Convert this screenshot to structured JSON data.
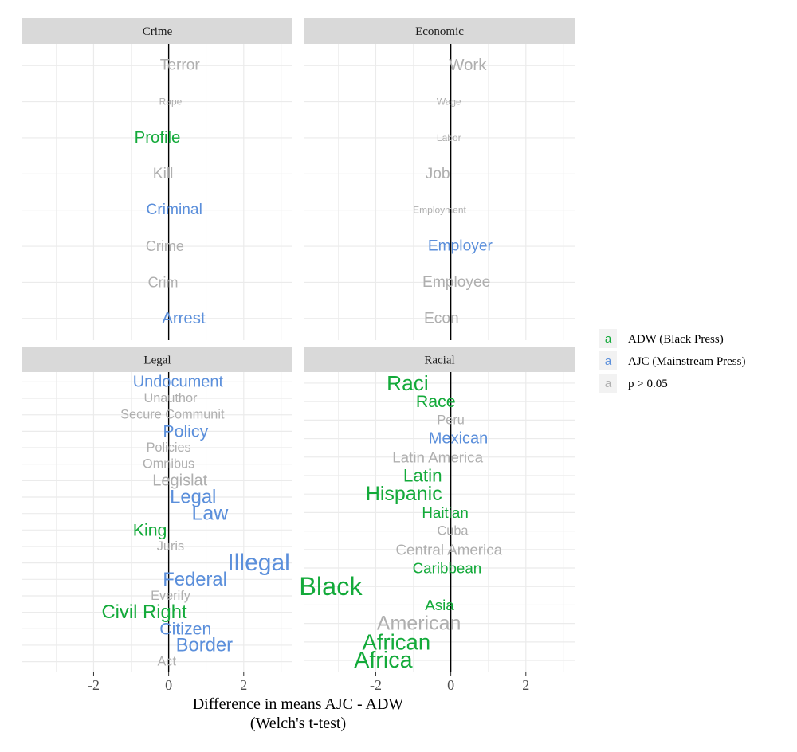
{
  "colors": {
    "adw": "#13AA3A",
    "ajc": "#5B8FDB",
    "ns": "#AFAFAF"
  },
  "chart_data": {
    "type": "scatter",
    "xlabel": "Difference in means AJC - ADW",
    "xlabel2": "(Welch's t-test)",
    "xlim": [
      -3.9,
      3.3
    ],
    "xticks": [
      -2,
      0,
      2
    ],
    "xtick_labels": [
      "-2",
      "0",
      "2"
    ],
    "grid": true,
    "legend": {
      "position": "right",
      "key_glyph": "a",
      "entries": [
        {
          "key": "adw",
          "label": "ADW (Black Press)"
        },
        {
          "key": "ajc",
          "label": "AJC (Mainstream Press)"
        },
        {
          "key": "ns",
          "label": "p > 0.05"
        }
      ]
    },
    "panels": [
      {
        "title": "Crime",
        "words": [
          {
            "label": "Terror",
            "x": 0.3,
            "group": "ns",
            "size": 1.6
          },
          {
            "label": "Rape",
            "x": 0.05,
            "group": "ns",
            "size": 1.0
          },
          {
            "label": "Profile",
            "x": -0.3,
            "group": "adw",
            "size": 1.7
          },
          {
            "label": "Kill",
            "x": -0.15,
            "group": "ns",
            "size": 1.6
          },
          {
            "label": "Criminal",
            "x": 0.15,
            "group": "ajc",
            "size": 1.6
          },
          {
            "label": "Crime",
            "x": -0.1,
            "group": "ns",
            "size": 1.5
          },
          {
            "label": "Crim",
            "x": -0.15,
            "group": "ns",
            "size": 1.5
          },
          {
            "label": "Arrest",
            "x": 0.4,
            "group": "ajc",
            "size": 1.7
          }
        ]
      },
      {
        "title": "Economic",
        "words": [
          {
            "label": "Work",
            "x": 0.45,
            "group": "ns",
            "size": 1.7
          },
          {
            "label": "Wage",
            "x": -0.05,
            "group": "ns",
            "size": 1.0
          },
          {
            "label": "Labor",
            "x": -0.05,
            "group": "ns",
            "size": 1.0
          },
          {
            "label": "Job",
            "x": -0.35,
            "group": "ns",
            "size": 1.6
          },
          {
            "label": "Employment",
            "x": -0.3,
            "group": "ns",
            "size": 1.0
          },
          {
            "label": "Employer",
            "x": 0.25,
            "group": "ajc",
            "size": 1.6
          },
          {
            "label": "Employee",
            "x": 0.15,
            "group": "ns",
            "size": 1.6
          },
          {
            "label": "Econ",
            "x": -0.25,
            "group": "ns",
            "size": 1.6
          }
        ]
      },
      {
        "title": "Legal",
        "words": [
          {
            "label": "Undocument",
            "x": 0.25,
            "group": "ajc",
            "size": 1.6
          },
          {
            "label": "Unauthor",
            "x": 0.05,
            "group": "ns",
            "size": 1.3
          },
          {
            "label": "Secure Communit",
            "x": 0.1,
            "group": "ns",
            "size": 1.3
          },
          {
            "label": "Policy",
            "x": 0.45,
            "group": "ajc",
            "size": 1.7
          },
          {
            "label": "Policies",
            "x": 0.0,
            "group": "ns",
            "size": 1.3
          },
          {
            "label": "Omnibus",
            "x": 0.0,
            "group": "ns",
            "size": 1.3
          },
          {
            "label": "Legislat",
            "x": 0.3,
            "group": "ns",
            "size": 1.6
          },
          {
            "label": "Legal",
            "x": 0.65,
            "group": "ajc",
            "size": 1.9
          },
          {
            "label": "Law",
            "x": 1.1,
            "group": "ajc",
            "size": 2.0
          },
          {
            "label": "King",
            "x": -0.5,
            "group": "adw",
            "size": 1.7
          },
          {
            "label": "Juris",
            "x": 0.05,
            "group": "ns",
            "size": 1.3
          },
          {
            "label": "Illegal",
            "x": 2.4,
            "group": "ajc",
            "size": 2.4
          },
          {
            "label": "Federal",
            "x": 0.7,
            "group": "ajc",
            "size": 1.9
          },
          {
            "label": "Everify",
            "x": 0.05,
            "group": "ns",
            "size": 1.3
          },
          {
            "label": "Civil Right",
            "x": -0.65,
            "group": "adw",
            "size": 1.9
          },
          {
            "label": "Citizen",
            "x": 0.45,
            "group": "ajc",
            "size": 1.7
          },
          {
            "label": "Border",
            "x": 0.95,
            "group": "ajc",
            "size": 1.9
          },
          {
            "label": "Act",
            "x": -0.05,
            "group": "ns",
            "size": 1.3
          }
        ]
      },
      {
        "title": "Racial",
        "words": [
          {
            "label": "Raci",
            "x": -1.15,
            "group": "adw",
            "size": 2.1
          },
          {
            "label": "Race",
            "x": -0.4,
            "group": "adw",
            "size": 1.7
          },
          {
            "label": "Peru",
            "x": 0.0,
            "group": "ns",
            "size": 1.3
          },
          {
            "label": "Mexican",
            "x": 0.2,
            "group": "ajc",
            "size": 1.6
          },
          {
            "label": "Latin America",
            "x": -0.35,
            "group": "ns",
            "size": 1.5
          },
          {
            "label": "Latin",
            "x": -0.75,
            "group": "adw",
            "size": 1.8
          },
          {
            "label": "Hispanic",
            "x": -1.25,
            "group": "adw",
            "size": 2.0
          },
          {
            "label": "Haitian",
            "x": -0.15,
            "group": "adw",
            "size": 1.5
          },
          {
            "label": "Cuba",
            "x": 0.05,
            "group": "ns",
            "size": 1.3
          },
          {
            "label": "Central America",
            "x": -0.05,
            "group": "ns",
            "size": 1.5
          },
          {
            "label": "Caribbean",
            "x": -0.1,
            "group": "adw",
            "size": 1.5
          },
          {
            "label": "Black",
            "x": -3.2,
            "group": "adw",
            "size": 2.6
          },
          {
            "label": "Asia",
            "x": -0.3,
            "group": "adw",
            "size": 1.5
          },
          {
            "label": "American",
            "x": -0.85,
            "group": "ns",
            "size": 2.0
          },
          {
            "label": "African",
            "x": -1.45,
            "group": "adw",
            "size": 2.2
          },
          {
            "label": "Africa",
            "x": -1.8,
            "group": "adw",
            "size": 2.3
          }
        ]
      }
    ]
  }
}
